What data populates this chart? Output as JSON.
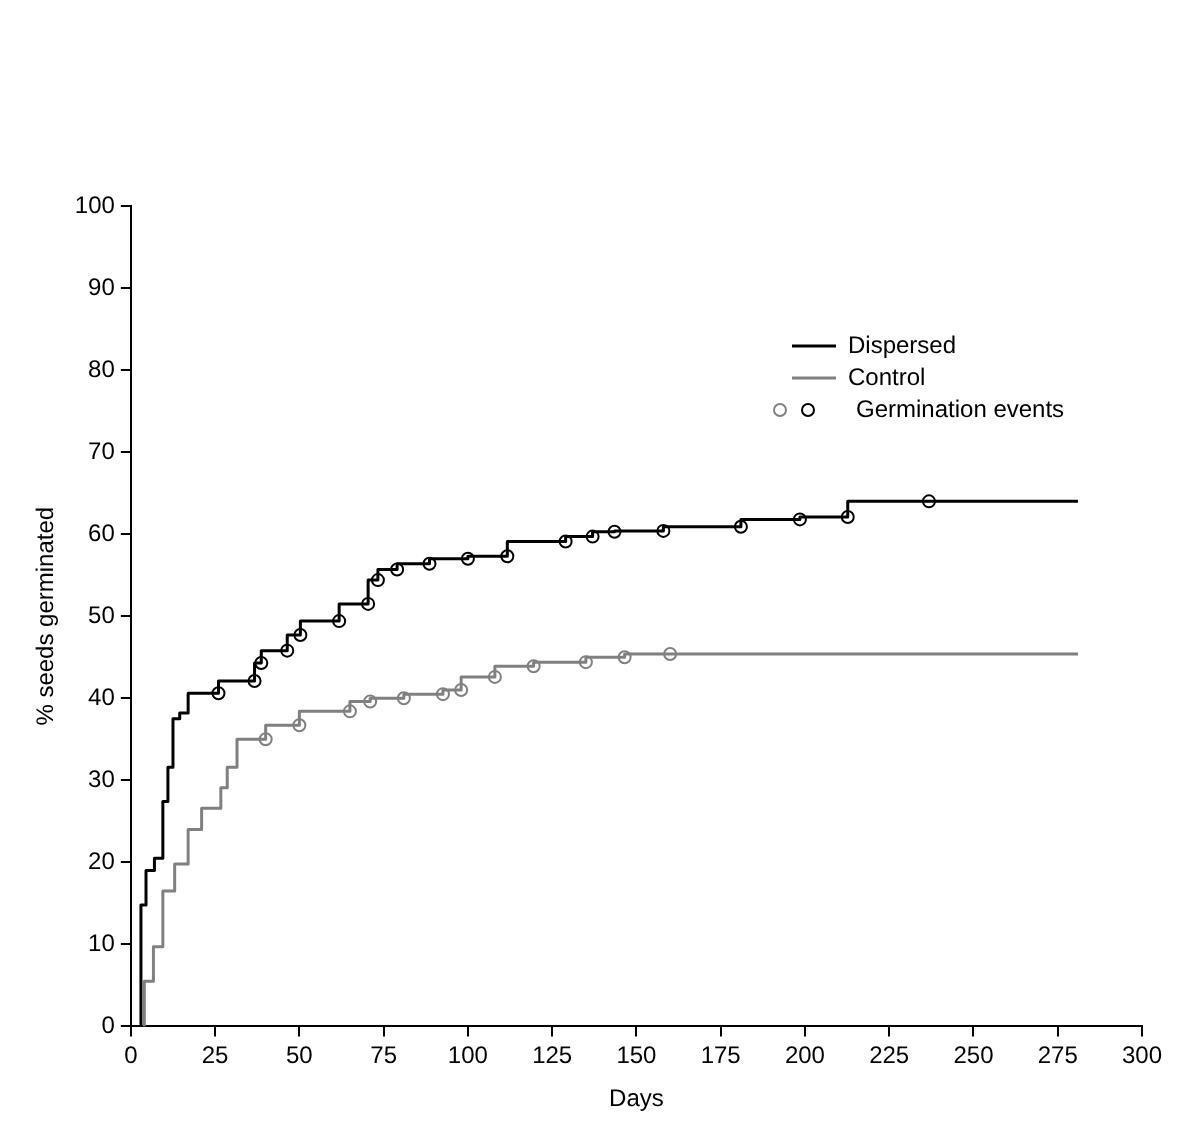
{
  "chart_data": {
    "type": "step",
    "xlabel": "Days",
    "ylabel": "% seeds germinated",
    "xlim": [
      0,
      300
    ],
    "xticks": [
      0,
      25,
      50,
      75,
      100,
      125,
      150,
      175,
      200,
      225,
      250,
      275,
      300
    ],
    "ylim": [
      0,
      100
    ],
    "yticks": [
      0,
      10,
      20,
      30,
      40,
      50,
      60,
      70,
      80,
      90,
      100
    ],
    "grid": false,
    "legend": "top right",
    "line_style": "solid",
    "series": [
      {
        "name": "Dispersed",
        "color": "#000000",
        "x": [
          3,
          3,
          4.5,
          7,
          9.5,
          11,
          12.5,
          14.5,
          17,
          26,
          36.7,
          38.7,
          46.4,
          50.3,
          61.8,
          70.4,
          73.3,
          79,
          88.6,
          100,
          111.7,
          129,
          137,
          143.5,
          158,
          181,
          198.5,
          212.7,
          236.8,
          281
        ],
        "values": [
          0,
          8.9,
          14.8,
          19,
          20.5,
          27.4,
          31.6,
          37.5,
          38.2,
          40.6,
          42.1,
          44.3,
          45.8,
          47.7,
          49.4,
          51.5,
          54.4,
          55.7,
          56.4,
          57,
          57.3,
          59.1,
          59.7,
          60.3,
          60.4,
          60.9,
          61.8,
          62.1,
          64,
          64
        ]
      },
      {
        "name": "Control",
        "color": "#808080",
        "x": [
          4,
          6.7,
          9.5,
          13,
          17,
          21,
          26.7,
          28.6,
          31.5,
          40,
          50,
          65,
          71,
          81,
          92.6,
          98,
          108,
          119.5,
          135,
          146.5,
          160,
          281
        ],
        "values": [
          0,
          5.5,
          9.7,
          16.5,
          19.8,
          24,
          26.6,
          29.1,
          31.6,
          35,
          36.7,
          38.4,
          39.6,
          40,
          40.5,
          41,
          42.6,
          43.9,
          44.4,
          45,
          45.4,
          45.4
        ]
      },
      {
        "name": "Germination events",
        "type": "scatter",
        "marker": "circle",
        "color": "#000000",
        "x": [
          26,
          36.7,
          38.7,
          46.4,
          50.3,
          61.8,
          70.4,
          73.3,
          79,
          88.6,
          100,
          111.7,
          129,
          137,
          143.5,
          158,
          181,
          198.5,
          212.7,
          236.8
        ],
        "values": [
          40.6,
          42.1,
          44.3,
          45.8,
          47.7,
          49.4,
          51.5,
          54.4,
          55.7,
          56.4,
          57,
          57.3,
          59.1,
          59.7,
          60.3,
          60.4,
          60.9,
          61.8,
          62.1,
          64
        ]
      },
      {
        "type": "scatter",
        "marker": "circle",
        "color": "#808080",
        "x": [
          40,
          50,
          65,
          71,
          81,
          92.6,
          98,
          108,
          119.5,
          135,
          146.5,
          160
        ],
        "values": [
          35,
          36.7,
          38.4,
          39.6,
          40,
          40.5,
          41,
          42.6,
          43.9,
          44.4,
          45,
          45.4
        ]
      }
    ]
  }
}
